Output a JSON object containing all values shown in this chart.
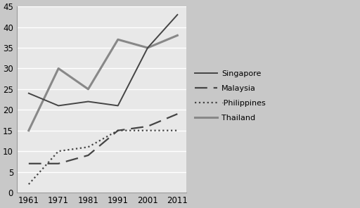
{
  "years": [
    1961,
    1971,
    1981,
    1991,
    2001,
    2011
  ],
  "singapore": [
    24,
    21,
    22,
    21,
    35,
    43
  ],
  "malaysia": [
    7,
    7,
    9,
    15,
    16,
    19
  ],
  "philippines": [
    2,
    10,
    11,
    15,
    15,
    15
  ],
  "thailand": [
    15,
    30,
    25,
    37,
    35,
    38
  ],
  "ylim": [
    0,
    45
  ],
  "yticks": [
    0,
    5,
    10,
    15,
    20,
    25,
    30,
    35,
    40,
    45
  ],
  "xticks": [
    1961,
    1971,
    1981,
    1991,
    2001,
    2011
  ],
  "legend_labels": [
    "Singapore",
    "Malaysia",
    "·Philippines",
    "Thailand"
  ],
  "plot_bg": "#e8e8e8",
  "fig_bg": "#c8c8c8",
  "line_dark": "#444444",
  "line_gray": "#888888"
}
